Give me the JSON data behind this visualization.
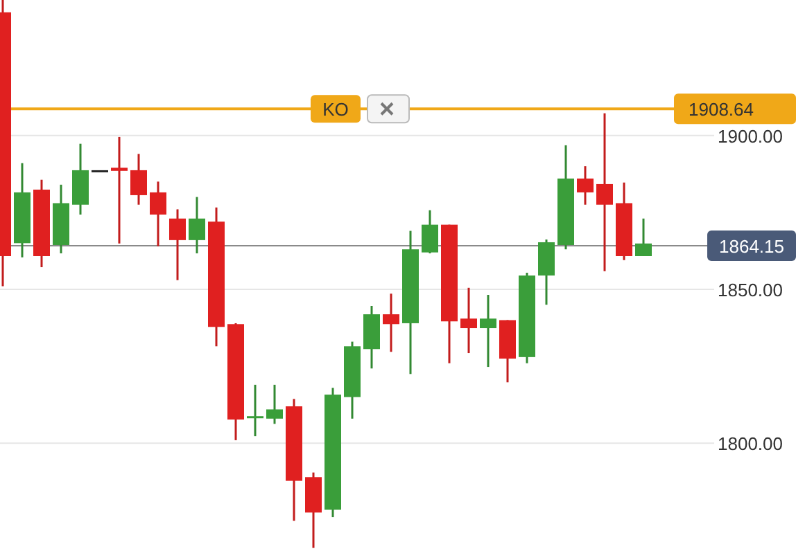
{
  "chart_data": {
    "type": "candlestick",
    "categories": [
      null,
      null,
      null,
      null,
      null,
      null,
      null,
      null,
      null,
      null,
      null,
      null,
      null,
      null,
      null,
      null,
      null,
      null,
      null,
      null,
      null,
      null,
      null,
      null,
      null,
      null,
      null,
      null,
      null,
      null,
      null,
      null,
      null,
      null
    ],
    "ohlc": [
      [
        1940,
        1944,
        1851,
        1860.8
      ],
      [
        1865,
        1891,
        1860.4,
        1881.5
      ],
      [
        1882.4,
        1885.6,
        1857.2,
        1860.8
      ],
      [
        1864.4,
        1884,
        1861.7,
        1878
      ],
      [
        1877.5,
        1897.3,
        1874.3,
        1888.7
      ],
      [
        1888.7,
        1888.7,
        1888.7,
        1888.7
      ],
      [
        1889.5,
        1899.5,
        1864.9,
        1888.5
      ],
      [
        1888.7,
        1894,
        1877.5,
        1880.6
      ],
      [
        1881.5,
        1885,
        1864,
        1874.3
      ],
      [
        1873,
        1876,
        1853,
        1866
      ],
      [
        1866,
        1880,
        1861.7,
        1873
      ],
      [
        1872,
        1876.6,
        1831.5,
        1837.8
      ],
      [
        1838.7,
        1839,
        1801,
        1807.7
      ],
      [
        1808.4,
        1819,
        1802.3,
        1808.8
      ],
      [
        1808,
        1819,
        1806.3,
        1811
      ],
      [
        1812,
        1814.4,
        1774.8,
        1787.8
      ],
      [
        1789,
        1790.5,
        1766,
        1777.5
      ],
      [
        1778.4,
        1818,
        1776,
        1815.8
      ],
      [
        1815,
        1833,
        1808,
        1831.5
      ],
      [
        1830.6,
        1844.6,
        1824.3,
        1841.9
      ],
      [
        1841.9,
        1848.6,
        1829.7,
        1838.7
      ],
      [
        1839,
        1869,
        1822.5,
        1863
      ],
      [
        1862,
        1875.7,
        1861.7,
        1871
      ],
      [
        1871,
        1871,
        1826,
        1839.6
      ],
      [
        1840.5,
        1850.5,
        1829.3,
        1837.4
      ],
      [
        1837.4,
        1848.2,
        1824.8,
        1840.5
      ],
      [
        1840,
        1840,
        1819.8,
        1827.5
      ],
      [
        1828,
        1855.4,
        1826,
        1854.5
      ],
      [
        1854.5,
        1866.2,
        1845,
        1865.3
      ],
      [
        1864.4,
        1896.8,
        1863,
        1886
      ],
      [
        1886,
        1890,
        1877.5,
        1881.5
      ],
      [
        1884.2,
        1907.2,
        1855.9,
        1877.5
      ],
      [
        1878,
        1884.7,
        1859.5,
        1860.8
      ],
      [
        1860.8,
        1873,
        1860.8,
        1864.9
      ]
    ],
    "colors": [
      "#e02020",
      "#3a9e3a",
      "#e02020",
      "#3a9e3a",
      "#3a9e3a",
      "#222222",
      "#e02020",
      "#e02020",
      "#e02020",
      "#e02020",
      "#3a9e3a",
      "#e02020",
      "#e02020",
      "#3a9e3a",
      "#3a9e3a",
      "#e02020",
      "#e02020",
      "#3a9e3a",
      "#3a9e3a",
      "#3a9e3a",
      "#e02020",
      "#3a9e3a",
      "#3a9e3a",
      "#e02020",
      "#e02020",
      "#3a9e3a",
      "#e02020",
      "#3a9e3a",
      "#3a9e3a",
      "#3a9e3a",
      "#e02020",
      "#e02020",
      "#e02020",
      "#3a9e3a"
    ],
    "ylim": [
      1765,
      1944
    ],
    "yticks": [
      {
        "value": 1800,
        "label": "1800.00"
      },
      {
        "value": 1850,
        "label": "1850.00"
      },
      {
        "value": 1900,
        "label": "1900.00"
      }
    ],
    "grid": "y",
    "annotations": [
      {
        "text": "1908.64",
        "y": 1908.64
      },
      {
        "text": "1864.15",
        "y": 1864.15
      }
    ],
    "ref_lines": [
      {
        "axis": "y",
        "value": 1908.64,
        "label": "KO",
        "color": "#f0a818"
      },
      {
        "axis": "y",
        "value": 1864.15,
        "color": "#8a8a8a"
      }
    ]
  }
}
